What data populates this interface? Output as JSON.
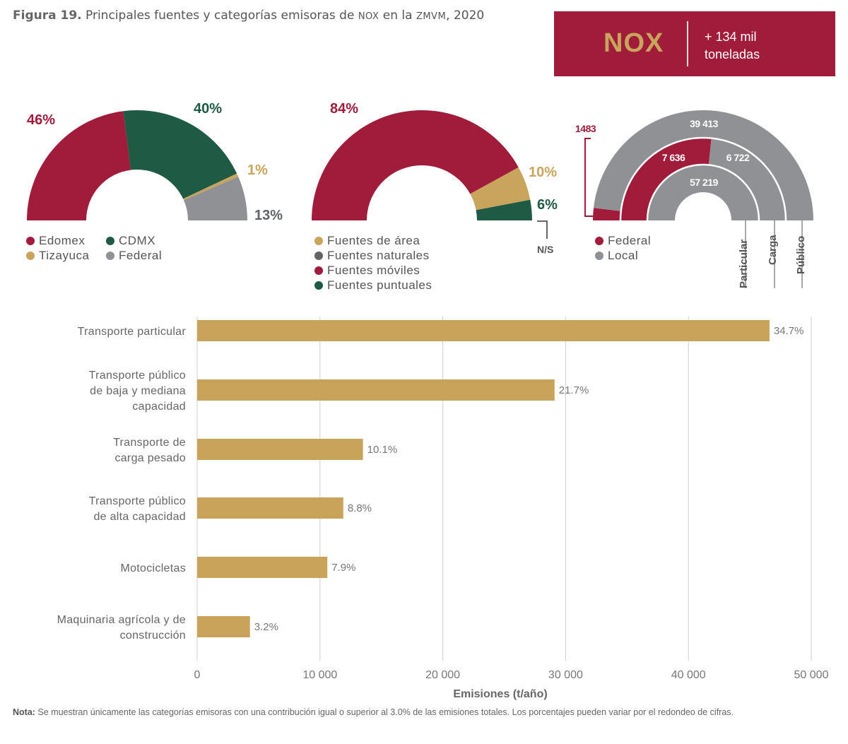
{
  "title": {
    "prefix": "Figura 19.",
    "text_before_nox": "Principales fuentes y categorías emisoras de ",
    "nox_sc": "NOX",
    "text_mid": " en la ",
    "zmvm_sc": "ZMVM",
    "text_after": ", 2020"
  },
  "banner": {
    "pollutant": "NOX",
    "amount_line1": "+ 134 mil",
    "amount_line2": "toneladas",
    "bg_color": "#a01c3a",
    "accent_color": "#c9a45c"
  },
  "colors": {
    "crimson": "#a01c3a",
    "green": "#1e5a44",
    "gold": "#c9a45c",
    "gray": "#8f9194",
    "darkgray": "#5f6366",
    "bar": "#caa35b"
  },
  "note": {
    "label": "Nota:",
    "text": " Se muestran únicamente las categorías emisoras con una contribución igual o superior al 3.0% de las emisiones totales. Los porcentajes pueden variar por el redondeo de cifras."
  },
  "chart_data": [
    {
      "type": "pie",
      "variant": "semi-donut",
      "slices": [
        {
          "name": "Edomex",
          "value": 46,
          "label": "46%",
          "color": "#a01c3a"
        },
        {
          "name": "CDMX",
          "value": 40,
          "label": "40%",
          "color": "#1e5a44"
        },
        {
          "name": "Tizayuca",
          "value": 1,
          "label": "1%",
          "color": "#c9a45c"
        },
        {
          "name": "Federal",
          "value": 13,
          "label": "13%",
          "color": "#8f9194"
        }
      ],
      "legend": [
        "Edomex",
        "CDMX",
        "Tizayuca",
        "Federal"
      ]
    },
    {
      "type": "pie",
      "variant": "semi-donut",
      "slices": [
        {
          "name": "Fuentes móviles",
          "value": 84,
          "label": "84%",
          "color": "#a01c3a"
        },
        {
          "name": "Fuentes de área",
          "value": 10,
          "label": "10%",
          "color": "#c9a45c"
        },
        {
          "name": "Fuentes puntuales",
          "value": 6,
          "label": "6%",
          "color": "#1e5a44"
        },
        {
          "name": "Fuentes naturales",
          "value": 0,
          "label": "N/S",
          "color": "#5f6366"
        }
      ],
      "legend": [
        "Fuentes de área",
        "Fuentes naturales",
        "Fuentes móviles",
        "Fuentes puntuales"
      ],
      "ns_label": "N/S"
    },
    {
      "type": "pie",
      "variant": "nested-semi-rings",
      "rings": [
        {
          "name": "Público",
          "federal": 1483,
          "local": 39413,
          "federal_label": "1483",
          "local_label": "39 413"
        },
        {
          "name": "Carga",
          "federal": 7636,
          "local": 6722,
          "federal_label": "7 636",
          "local_label": "6 722"
        },
        {
          "name": "Particular",
          "federal": 0,
          "local": 57219,
          "federal_label": "",
          "local_label": "57 219"
        }
      ],
      "legend": [
        "Federal",
        "Local"
      ],
      "legend_colors": [
        "#a01c3a",
        "#8f9194"
      ]
    },
    {
      "type": "bar",
      "orientation": "horizontal",
      "categories": [
        [
          "Transporte particular"
        ],
        [
          "Transporte público",
          "de baja y mediana",
          "capacidad"
        ],
        [
          "Transporte de",
          "carga pesado"
        ],
        [
          "Transporte público",
          "de alta capacidad"
        ],
        [
          "Motocicletas"
        ],
        [
          "Maquinaria agrícola y de",
          "construcción"
        ]
      ],
      "values": [
        46600,
        29100,
        13500,
        11900,
        10600,
        4300
      ],
      "value_labels": [
        "34.7%",
        "21.7%",
        "10.1%",
        "8.8%",
        "7.9%",
        "3.2%"
      ],
      "xlabel": "Emisiones (t/año)",
      "xlim": [
        0,
        50000
      ],
      "xticks": [
        0,
        10000,
        20000,
        30000,
        40000,
        50000
      ],
      "xtick_labels": [
        "0",
        "10 000",
        "20 000",
        "30 000",
        "40 000",
        "50 000"
      ],
      "grid": "vertical"
    }
  ]
}
